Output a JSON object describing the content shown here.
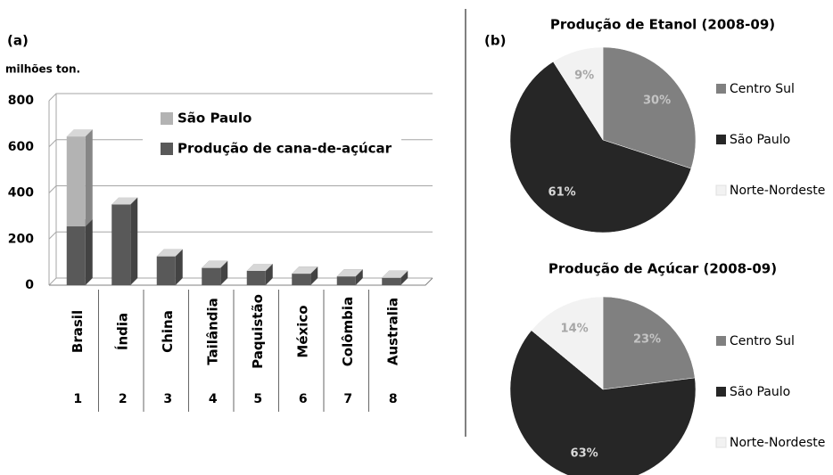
{
  "chart_data": [
    {
      "type": "bar3d",
      "label": "(a)",
      "ylabel": "milhões ton.",
      "categories": [
        "Brasil",
        "Índia",
        "China",
        "Tailândia",
        "Paquistão",
        "México",
        "Colômbia",
        "Australia"
      ],
      "category_numbers": [
        1,
        2,
        3,
        4,
        5,
        6,
        7,
        8
      ],
      "series": [
        {
          "name": "Produção de cana-de-açúcar",
          "color": "#595959",
          "values": [
            255,
            350,
            125,
            75,
            62,
            50,
            38,
            32
          ]
        },
        {
          "name": "São Paulo",
          "color": "#b3b3b3",
          "values": [
            390,
            0,
            0,
            0,
            0,
            0,
            0,
            0
          ]
        }
      ],
      "ylim": [
        0,
        800
      ],
      "yticks": [
        0,
        200,
        400,
        600,
        800
      ],
      "grid": true,
      "stacked": true
    },
    {
      "type": "pie",
      "label": "(b)",
      "title": "Produção de Etanol (2008-09)",
      "categories": [
        "Centro Sul",
        "São Paulo",
        "Norte-Nordeste"
      ],
      "values": [
        30,
        61,
        9
      ],
      "value_labels": [
        "30%",
        "61%",
        "9%"
      ],
      "colors": [
        "#808080",
        "#262626",
        "#f2f2f2"
      ],
      "label_colors": [
        "#c4c4c4",
        "#d9d9d9",
        "#a6a6a6"
      ]
    },
    {
      "type": "pie",
      "title": "Produção de Açúcar (2008-09)",
      "categories": [
        "Centro Sul",
        "São Paulo",
        "Norte-Nordeste"
      ],
      "values": [
        23,
        63,
        14
      ],
      "value_labels": [
        "23%",
        "63%",
        "14%"
      ],
      "colors": [
        "#808080",
        "#262626",
        "#f2f2f2"
      ],
      "label_colors": [
        "#c4c4c4",
        "#d9d9d9",
        "#a6a6a6"
      ]
    }
  ]
}
